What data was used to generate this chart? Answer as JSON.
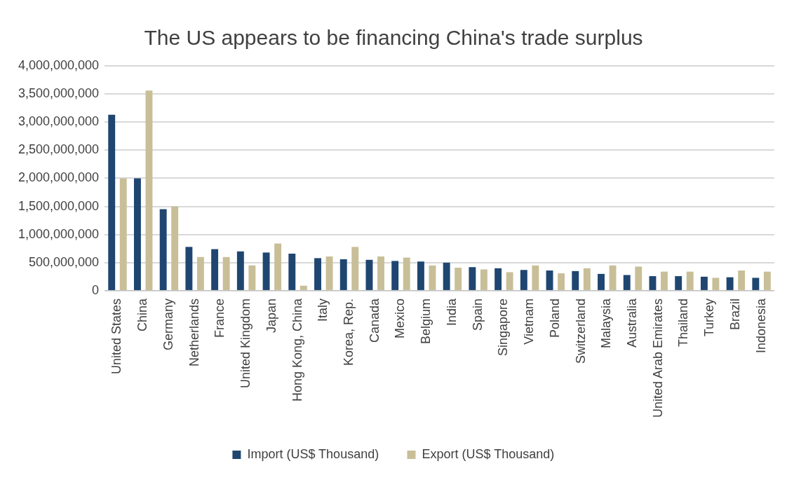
{
  "chart_data": {
    "type": "bar",
    "title": "The US appears to be financing China's trade surplus",
    "categories": [
      "United States",
      "China",
      "Germany",
      "Netherlands",
      "France",
      "United Kingdom",
      "Japan",
      "Hong Kong, China",
      "Italy",
      "Korea, Rep.",
      "Canada",
      "Mexico",
      "Belgium",
      "India",
      "Spain",
      "Singapore",
      "Vietnam",
      "Poland",
      "Switzerland",
      "Malaysia",
      "Australia",
      "United Arab Emirates",
      "Thailand",
      "Turkey",
      "Brazil",
      "Indonesia"
    ],
    "series": [
      {
        "name": "Import (US$ Thousand)",
        "color": "#1f4670",
        "values": [
          3130000000,
          2000000000,
          1450000000,
          780000000,
          740000000,
          700000000,
          680000000,
          660000000,
          580000000,
          560000000,
          550000000,
          530000000,
          520000000,
          500000000,
          420000000,
          400000000,
          370000000,
          360000000,
          350000000,
          300000000,
          280000000,
          260000000,
          260000000,
          250000000,
          240000000,
          230000000
        ]
      },
      {
        "name": "Export (US$ Thousand)",
        "color": "#c8bf98",
        "values": [
          2000000000,
          3560000000,
          1500000000,
          600000000,
          600000000,
          450000000,
          840000000,
          90000000,
          610000000,
          780000000,
          610000000,
          590000000,
          450000000,
          410000000,
          380000000,
          330000000,
          450000000,
          310000000,
          400000000,
          450000000,
          430000000,
          340000000,
          340000000,
          230000000,
          360000000,
          340000000
        ]
      }
    ],
    "ylim": [
      0,
      4000000000
    ],
    "yticks": [
      0,
      {
        "value": 500000000,
        "label": "500,000,000"
      },
      {
        "value": 1000000000,
        "label": "1,000,000,000"
      },
      {
        "value": 1500000000,
        "label": "1,500,000,000"
      },
      {
        "value": 2000000000,
        "label": "2,000,000,000"
      },
      {
        "value": 2500000000,
        "label": "2,500,000,000"
      },
      {
        "value": 3000000000,
        "label": "3,000,000,000"
      },
      {
        "value": 3500000000,
        "label": "3,500,000,000"
      },
      {
        "value": 4000000000,
        "label": "4,000,000,000"
      }
    ],
    "grid": "y",
    "legend": "bottom"
  }
}
